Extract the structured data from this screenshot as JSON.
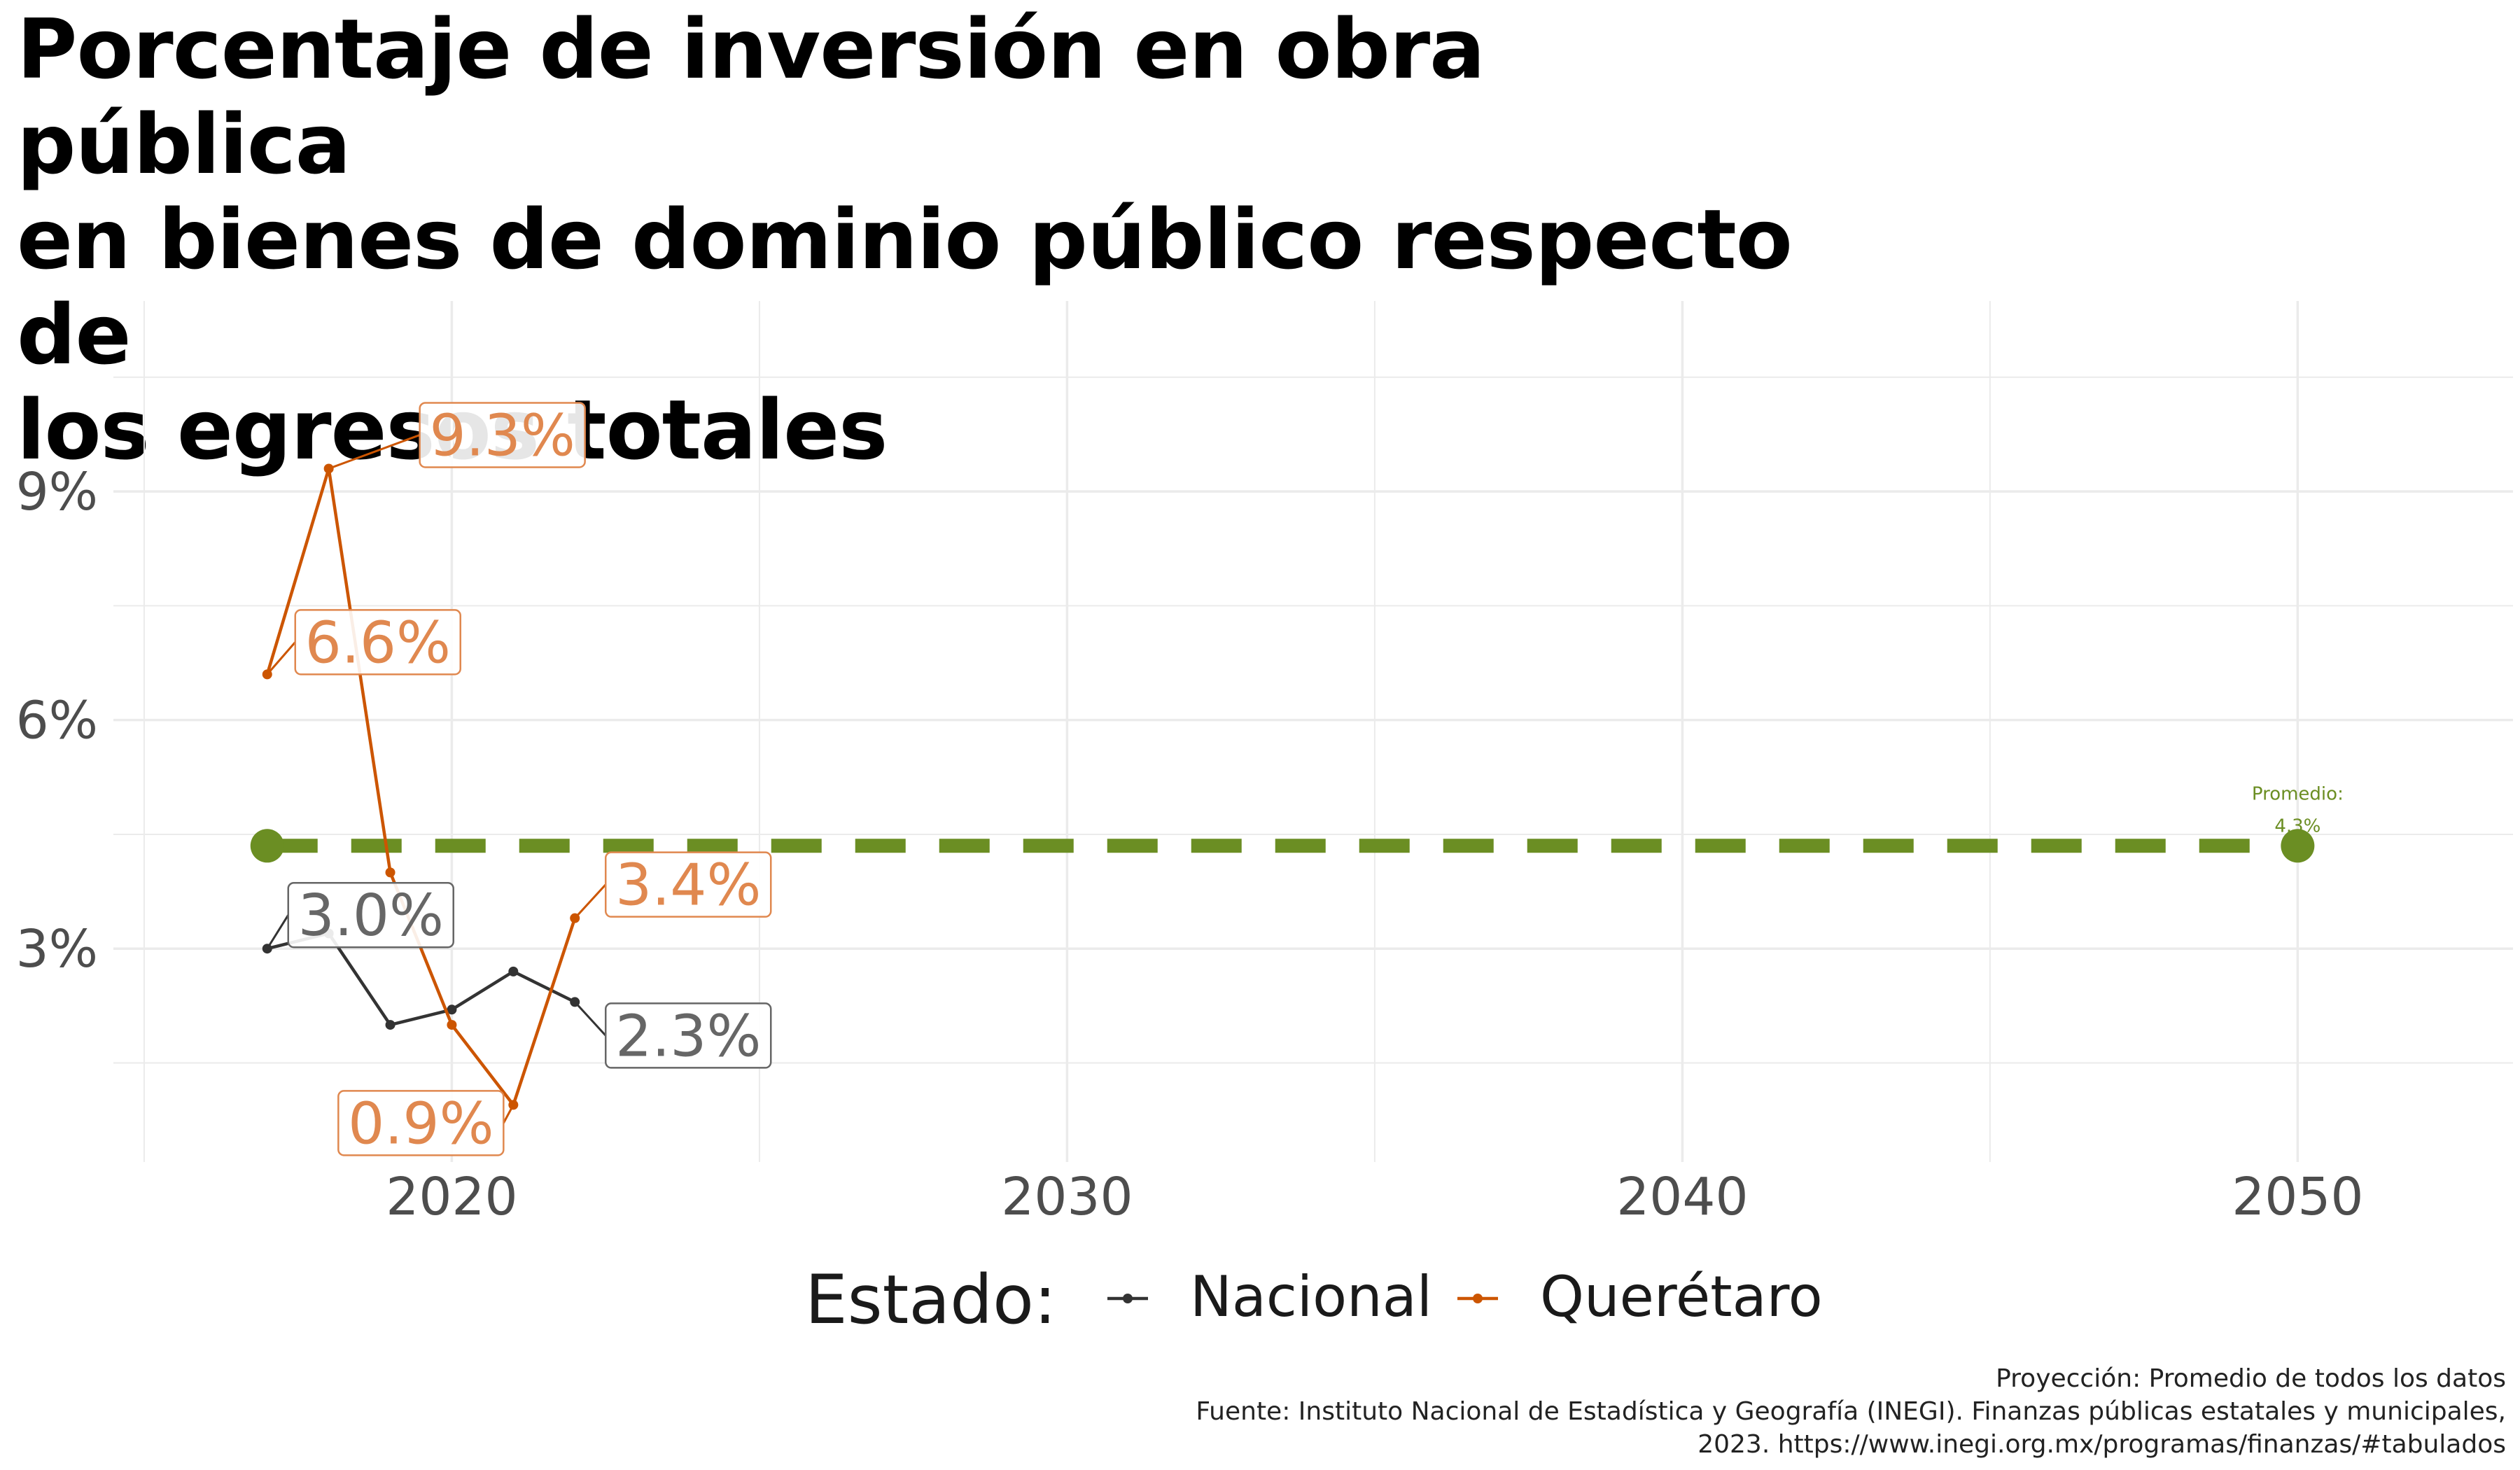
{
  "title_lines": [
    "Porcentaje de inversión en obra pública",
    "en bienes de dominio público respecto de",
    "los egresos totales"
  ],
  "caption_lines": [
    "Proyección: Promedio de todos los datos",
    "Fuente: Instituto Nacional de Estadística y Geografía (INEGI). Finanzas públicas estatales y municipales,",
    "2023. https://www.inegi.org.mx/programas/finanzas/#tabulados"
  ],
  "legend": {
    "title": "Estado:",
    "items": [
      {
        "label": "Nacional",
        "color": "#333333"
      },
      {
        "label": "Querétaro",
        "color": "#cc5500"
      }
    ]
  },
  "colors": {
    "nacional": "#333333",
    "queretaro": "#cc5500",
    "queretaro_label": "#e0884f",
    "nacional_label": "#666666",
    "promedio": "#6b8e23",
    "grid": "#ebebeb"
  },
  "chart_data": {
    "type": "line",
    "title": "Porcentaje de inversión en obra pública en bienes de dominio público respecto de los egresos totales",
    "xlabel": "",
    "ylabel": "",
    "xlim": [
      2014.5,
      2053.5
    ],
    "ylim": [
      0.2,
      11.5
    ],
    "x_ticks": [
      2020,
      2030,
      2040,
      2050
    ],
    "y_ticks": [
      3,
      6,
      9
    ],
    "y_tick_labels": [
      "3%",
      "6%",
      "9%"
    ],
    "grid": true,
    "legend_position": "bottom",
    "series": [
      {
        "name": "Nacional",
        "x": [
          2017,
          2018,
          2019,
          2020,
          2021,
          2022
        ],
        "y": [
          3.0,
          3.2,
          2.0,
          2.2,
          2.7,
          2.3
        ]
      },
      {
        "name": "Querétaro",
        "x": [
          2017,
          2018,
          2019,
          2020,
          2021,
          2022
        ],
        "y": [
          6.6,
          9.3,
          4.0,
          2.0,
          0.95,
          3.4
        ]
      }
    ],
    "labels": [
      {
        "series": "Querétaro",
        "x": 2018,
        "y": 9.3,
        "text": "9.3%"
      },
      {
        "series": "Querétaro",
        "x": 2017,
        "y": 6.6,
        "text": "6.6%"
      },
      {
        "series": "Querétaro",
        "x": 2022,
        "y": 3.4,
        "text": "3.4%"
      },
      {
        "series": "Querétaro",
        "x": 2021,
        "y": 0.95,
        "text": "0.9%"
      },
      {
        "series": "Nacional",
        "x": 2017,
        "y": 3.0,
        "text": "3.0%"
      },
      {
        "series": "Nacional",
        "x": 2022,
        "y": 2.3,
        "text": "2.3%"
      }
    ],
    "projection": {
      "x": [
        2017,
        2050
      ],
      "y": 4.35,
      "label_line1": "Promedio:",
      "label_line2": "4.3%"
    }
  }
}
